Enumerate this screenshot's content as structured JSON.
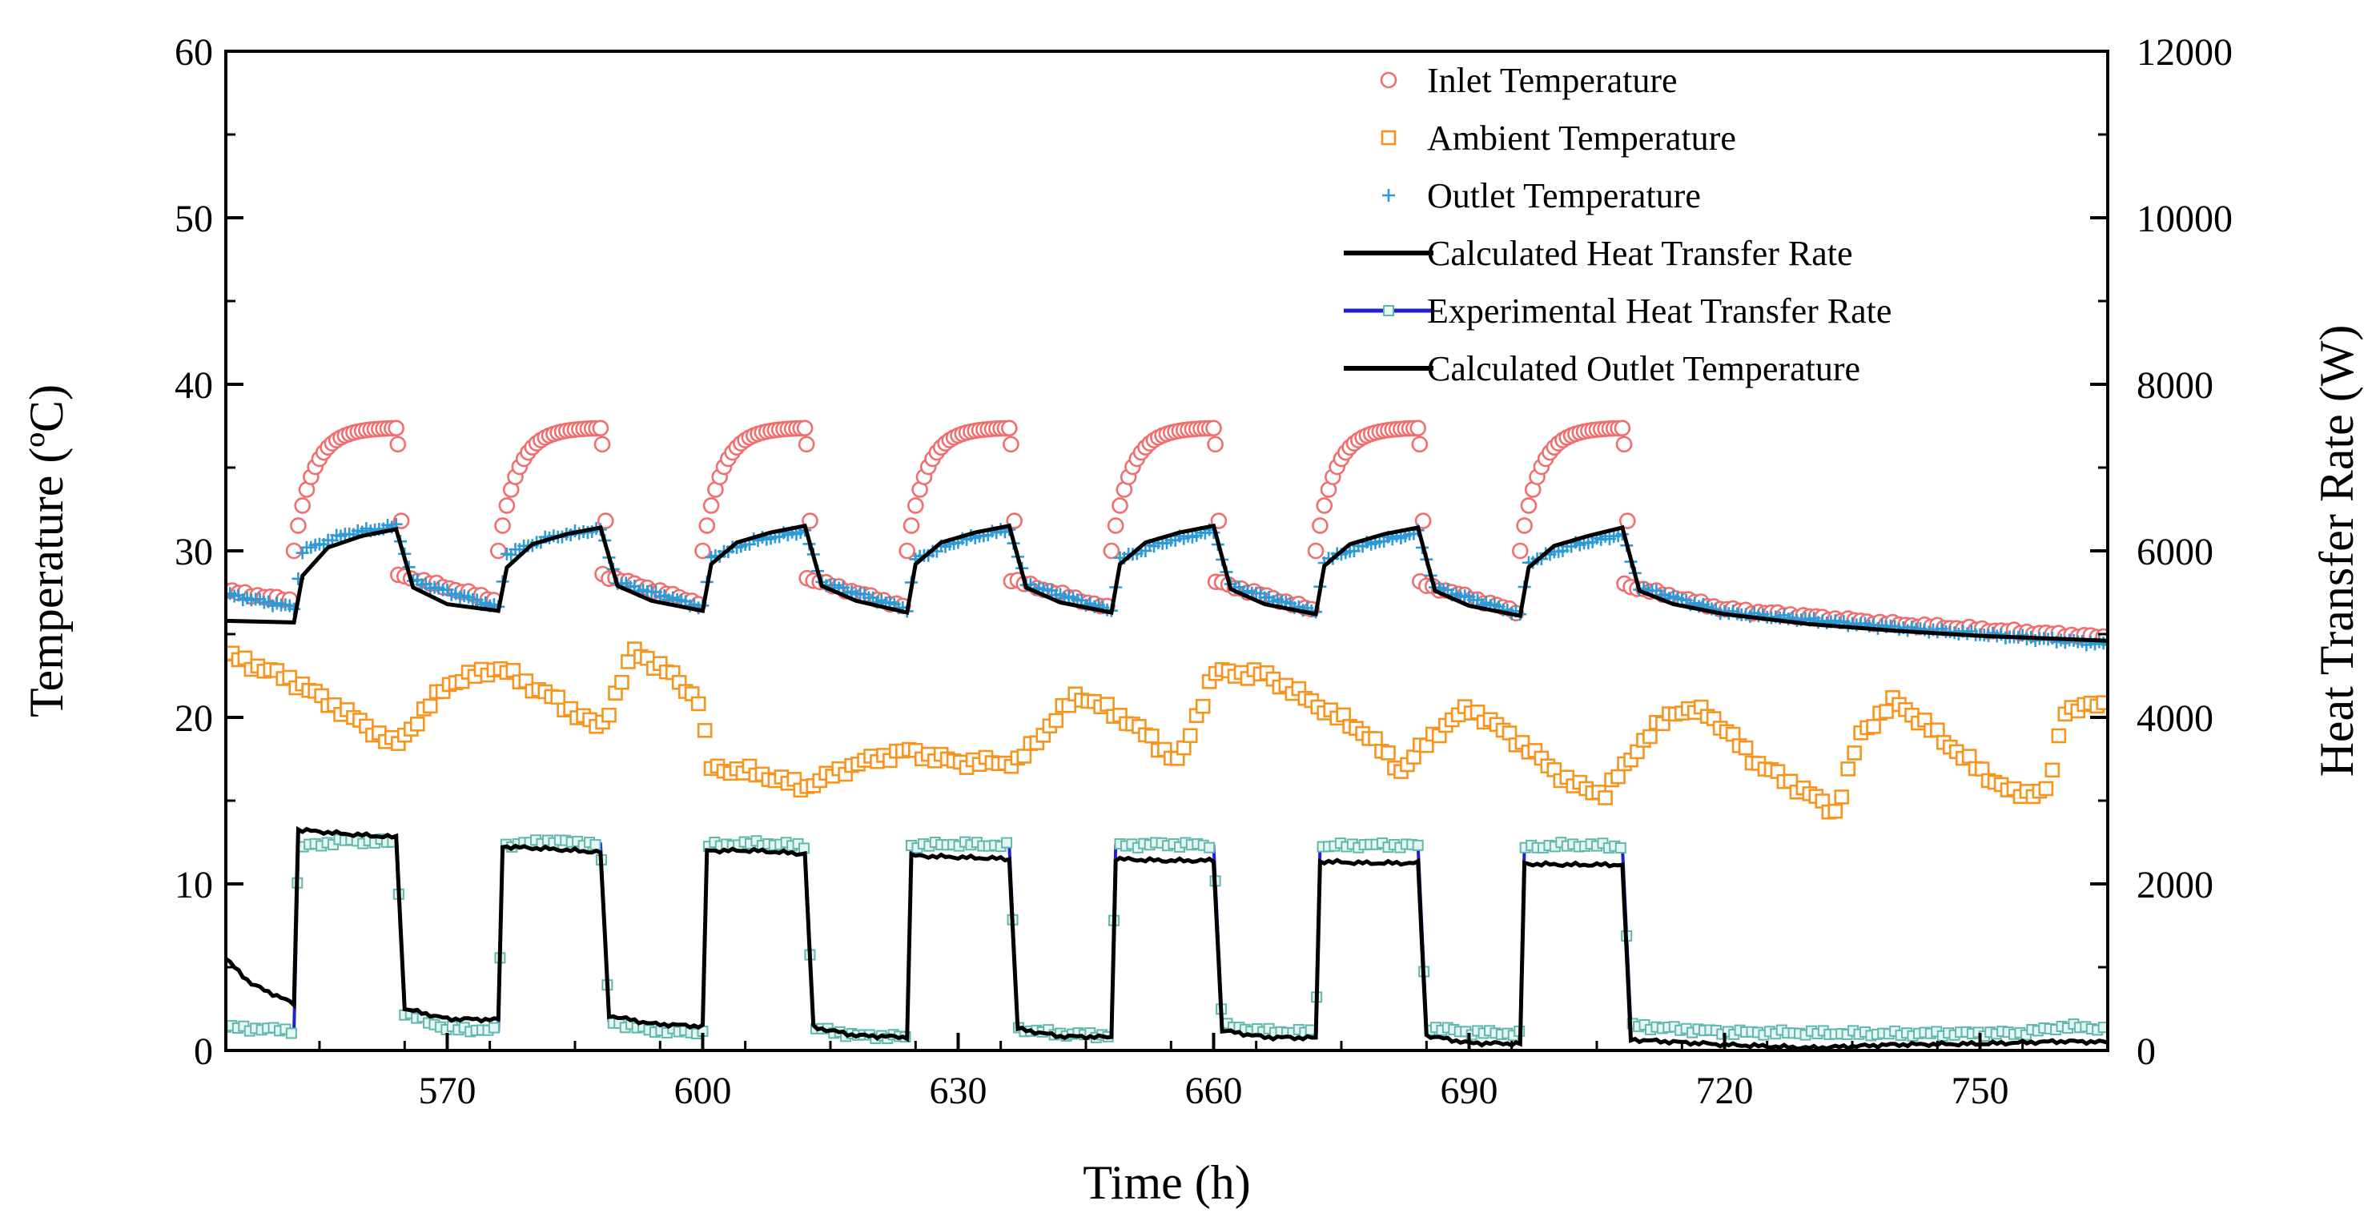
{
  "chart_data": {
    "type": "line",
    "title": "",
    "xlabel": "Time (h)",
    "ylabel": "Temperature (ºC)",
    "y2label": "Heat Transfer Rate (W)",
    "xlim": [
      544,
      765
    ],
    "ylim": [
      0,
      60
    ],
    "y2lim": [
      0,
      12000
    ],
    "xticks": [
      570,
      600,
      630,
      660,
      690,
      720,
      750
    ],
    "yticks": [
      0,
      10,
      20,
      30,
      40,
      50,
      60
    ],
    "y2ticks": [
      0,
      2000,
      4000,
      6000,
      8000,
      10000,
      12000
    ],
    "legend_position": "top-right",
    "cycles": [
      {
        "start": 552,
        "end": 564
      },
      {
        "start": 576,
        "end": 588
      },
      {
        "start": 600,
        "end": 612
      },
      {
        "start": 624,
        "end": 636
      },
      {
        "start": 648,
        "end": 660
      },
      {
        "start": 672,
        "end": 684
      },
      {
        "start": 696,
        "end": 708
      }
    ],
    "series": [
      {
        "name": "Inlet Temperature",
        "marker": "circle",
        "color": "#f26d6d",
        "axis": "left",
        "on_level_start": 30,
        "on_level_end": 37.4,
        "off_points": [
          [
            544,
            27.6
          ],
          [
            552,
            27.0
          ],
          [
            564,
            28.6
          ],
          [
            576,
            27.0
          ],
          [
            588,
            28.6
          ],
          [
            600,
            26.8
          ],
          [
            612,
            28.4
          ],
          [
            624,
            26.6
          ],
          [
            636,
            28.3
          ],
          [
            648,
            26.5
          ],
          [
            660,
            28.2
          ],
          [
            672,
            26.4
          ],
          [
            684,
            28.1
          ],
          [
            696,
            26.3
          ],
          [
            708,
            28.0
          ],
          [
            720,
            26.5
          ],
          [
            740,
            25.6
          ],
          [
            765,
            24.8
          ]
        ]
      },
      {
        "name": "Ambient Temperature",
        "marker": "square",
        "color": "#f7941d",
        "axis": "left",
        "points": [
          [
            544,
            23.8
          ],
          [
            552,
            22.2
          ],
          [
            558,
            20.3
          ],
          [
            564,
            18.3
          ],
          [
            570,
            22.0
          ],
          [
            576,
            23.0
          ],
          [
            582,
            21.3
          ],
          [
            588,
            19.3
          ],
          [
            592,
            24.0
          ],
          [
            596,
            22.7
          ],
          [
            600,
            20.8
          ],
          [
            600.5,
            17.0
          ],
          [
            606,
            16.7
          ],
          [
            612,
            15.8
          ],
          [
            618,
            17.2
          ],
          [
            624,
            18.0
          ],
          [
            630,
            17.3
          ],
          [
            637,
            17.3
          ],
          [
            644,
            21.4
          ],
          [
            650,
            19.8
          ],
          [
            656,
            17.3
          ],
          [
            660,
            22.7
          ],
          [
            666,
            22.6
          ],
          [
            672,
            20.8
          ],
          [
            678,
            19.0
          ],
          [
            682,
            16.8
          ],
          [
            686,
            19.0
          ],
          [
            690,
            20.6
          ],
          [
            696,
            18.5
          ],
          [
            702,
            16.0
          ],
          [
            706,
            15.4
          ],
          [
            710,
            18.3
          ],
          [
            714,
            20.4
          ],
          [
            718,
            20.3
          ],
          [
            724,
            17.2
          ],
          [
            730,
            15.4
          ],
          [
            733,
            14.3
          ],
          [
            736,
            19.0
          ],
          [
            740,
            21.0
          ],
          [
            744,
            19.4
          ],
          [
            750,
            16.8
          ],
          [
            754,
            15.4
          ],
          [
            758,
            15.6
          ],
          [
            760,
            20.5
          ],
          [
            765,
            20.8
          ]
        ]
      },
      {
        "name": "Outlet Temperature",
        "marker": "plus",
        "color": "#2b9ad6",
        "axis": "left",
        "points": [
          [
            544,
            27.4
          ],
          [
            552,
            26.6
          ],
          [
            553,
            30.0
          ],
          [
            558,
            31.0
          ],
          [
            564,
            31.5
          ],
          [
            566,
            28.2
          ],
          [
            576,
            26.6
          ],
          [
            577,
            29.8
          ],
          [
            582,
            30.8
          ],
          [
            588,
            31.3
          ],
          [
            590,
            28.1
          ],
          [
            600,
            26.6
          ],
          [
            601,
            29.6
          ],
          [
            606,
            30.6
          ],
          [
            612,
            31.2
          ],
          [
            614,
            28.1
          ],
          [
            624,
            26.5
          ],
          [
            625,
            29.5
          ],
          [
            630,
            30.6
          ],
          [
            636,
            31.3
          ],
          [
            638,
            28.0
          ],
          [
            648,
            26.4
          ],
          [
            649,
            29.5
          ],
          [
            654,
            30.5
          ],
          [
            660,
            31.2
          ],
          [
            662,
            27.9
          ],
          [
            672,
            26.3
          ],
          [
            673,
            29.4
          ],
          [
            678,
            30.4
          ],
          [
            684,
            31.1
          ],
          [
            686,
            27.8
          ],
          [
            696,
            26.2
          ],
          [
            697,
            29.3
          ],
          [
            702,
            30.3
          ],
          [
            708,
            31.0
          ],
          [
            710,
            27.8
          ],
          [
            720,
            26.3
          ],
          [
            740,
            25.4
          ],
          [
            765,
            24.4
          ]
        ]
      },
      {
        "name": "Calculated Heat Transfer Rate",
        "marker": "none",
        "color": "#000000",
        "axis": "right",
        "points": [
          [
            544,
            1100
          ],
          [
            547,
            800
          ],
          [
            552,
            560
          ],
          [
            552.5,
            2650
          ],
          [
            558,
            2600
          ],
          [
            564,
            2560
          ],
          [
            565,
            500
          ],
          [
            570,
            380
          ],
          [
            576,
            370
          ],
          [
            576.5,
            2450
          ],
          [
            582,
            2420
          ],
          [
            588,
            2380
          ],
          [
            589,
            420
          ],
          [
            594,
            320
          ],
          [
            600,
            290
          ],
          [
            600.5,
            2400
          ],
          [
            606,
            2400
          ],
          [
            612,
            2360
          ],
          [
            613,
            280
          ],
          [
            618,
            180
          ],
          [
            624,
            160
          ],
          [
            624.5,
            2340
          ],
          [
            630,
            2320
          ],
          [
            636,
            2300
          ],
          [
            637,
            260
          ],
          [
            642,
            170
          ],
          [
            648,
            160
          ],
          [
            648.5,
            2300
          ],
          [
            654,
            2280
          ],
          [
            660,
            2280
          ],
          [
            661,
            240
          ],
          [
            666,
            160
          ],
          [
            672,
            150
          ],
          [
            672.5,
            2270
          ],
          [
            678,
            2250
          ],
          [
            684,
            2250
          ],
          [
            685,
            180
          ],
          [
            690,
            90
          ],
          [
            696,
            80
          ],
          [
            696.5,
            2240
          ],
          [
            702,
            2230
          ],
          [
            708,
            2230
          ],
          [
            709,
            130
          ],
          [
            720,
            70
          ],
          [
            730,
            30
          ],
          [
            740,
            70
          ],
          [
            750,
            80
          ],
          [
            760,
            110
          ],
          [
            765,
            100
          ]
        ]
      },
      {
        "name": "Experimental Heat Transfer Rate",
        "marker": "small-square",
        "color": "#1f1fd6",
        "axis": "right",
        "points": [
          [
            544,
            280
          ],
          [
            552,
            240
          ],
          [
            552.5,
            2440
          ],
          [
            558,
            2520
          ],
          [
            564,
            2500
          ],
          [
            565,
            450
          ],
          [
            570,
            260
          ],
          [
            576,
            240
          ],
          [
            576.5,
            2460
          ],
          [
            582,
            2520
          ],
          [
            588,
            2480
          ],
          [
            589,
            350
          ],
          [
            594,
            240
          ],
          [
            600,
            220
          ],
          [
            600.5,
            2460
          ],
          [
            606,
            2490
          ],
          [
            612,
            2460
          ],
          [
            613,
            270
          ],
          [
            618,
            180
          ],
          [
            624,
            160
          ],
          [
            624.5,
            2460
          ],
          [
            630,
            2480
          ],
          [
            636,
            2460
          ],
          [
            637,
            260
          ],
          [
            642,
            200
          ],
          [
            648,
            180
          ],
          [
            648.5,
            2460
          ],
          [
            654,
            2480
          ],
          [
            660,
            2460
          ],
          [
            661,
            300
          ],
          [
            666,
            230
          ],
          [
            672,
            220
          ],
          [
            672.5,
            2450
          ],
          [
            678,
            2470
          ],
          [
            684,
            2460
          ],
          [
            685,
            280
          ],
          [
            690,
            220
          ],
          [
            696,
            200
          ],
          [
            696.5,
            2440
          ],
          [
            702,
            2470
          ],
          [
            708,
            2450
          ],
          [
            709,
            300
          ],
          [
            720,
            220
          ],
          [
            740,
            200
          ],
          [
            755,
            210
          ],
          [
            760,
            290
          ],
          [
            765,
            260
          ]
        ]
      },
      {
        "name": "Calculated Outlet Temperature",
        "marker": "none",
        "color": "#000000",
        "axis": "left",
        "points": [
          [
            544,
            25.8
          ],
          [
            552,
            25.7
          ],
          [
            553,
            28.5
          ],
          [
            556,
            30.2
          ],
          [
            560,
            30.9
          ],
          [
            564,
            31.3
          ],
          [
            566,
            27.8
          ],
          [
            570,
            26.8
          ],
          [
            576,
            26.4
          ],
          [
            577,
            29.0
          ],
          [
            580,
            30.4
          ],
          [
            584,
            31.0
          ],
          [
            588,
            31.4
          ],
          [
            590,
            27.9
          ],
          [
            594,
            27.0
          ],
          [
            600,
            26.4
          ],
          [
            601,
            29.2
          ],
          [
            604,
            30.5
          ],
          [
            608,
            31.1
          ],
          [
            612,
            31.5
          ],
          [
            614,
            27.9
          ],
          [
            618,
            27.0
          ],
          [
            624,
            26.3
          ],
          [
            625,
            29.2
          ],
          [
            628,
            30.5
          ],
          [
            632,
            31.1
          ],
          [
            636,
            31.5
          ],
          [
            638,
            27.8
          ],
          [
            642,
            26.9
          ],
          [
            648,
            26.3
          ],
          [
            649,
            29.2
          ],
          [
            652,
            30.5
          ],
          [
            656,
            31.1
          ],
          [
            660,
            31.5
          ],
          [
            662,
            27.7
          ],
          [
            666,
            26.8
          ],
          [
            672,
            26.2
          ],
          [
            673,
            29.1
          ],
          [
            676,
            30.4
          ],
          [
            680,
            31.0
          ],
          [
            684,
            31.4
          ],
          [
            686,
            27.6
          ],
          [
            690,
            26.7
          ],
          [
            696,
            26.1
          ],
          [
            697,
            29.0
          ],
          [
            700,
            30.3
          ],
          [
            704,
            30.9
          ],
          [
            708,
            31.4
          ],
          [
            710,
            27.6
          ],
          [
            714,
            26.8
          ],
          [
            720,
            26.2
          ],
          [
            730,
            25.6
          ],
          [
            740,
            25.2
          ],
          [
            750,
            24.9
          ],
          [
            765,
            24.6
          ]
        ]
      }
    ]
  }
}
